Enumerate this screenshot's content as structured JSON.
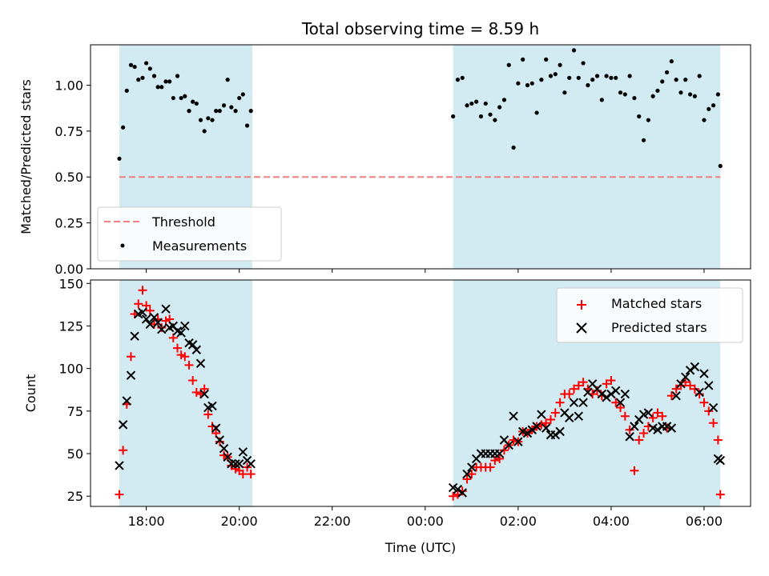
{
  "title": "Total observing time = 8.59 h",
  "colors": {
    "shade": "#add8e6",
    "threshold": "#f08080",
    "measurement": "#000000",
    "matched": "#ff0000",
    "predicted": "#000000"
  },
  "shaded_intervals_hours": [
    [
      17.42,
      20.28
    ],
    [
      24.6,
      30.35
    ]
  ],
  "chart_data": [
    {
      "type": "scatter",
      "ylabel": "Matched/Predicted stars",
      "xlabel": "",
      "ylim": [
        0,
        1.22
      ],
      "xlim": [
        16.8,
        31.0
      ],
      "yticks": [
        0.0,
        0.25,
        0.5,
        0.75,
        1.0
      ],
      "ytick_labels": [
        "0.00",
        "0.25",
        "0.50",
        "0.75",
        "1.00"
      ],
      "legend_position": "lower-left",
      "threshold": {
        "name": "Threshold",
        "y": 0.5,
        "x_range": [
          17.42,
          30.35
        ]
      },
      "series": [
        {
          "name": "Measurements",
          "x": [
            17.42,
            17.5,
            17.58,
            17.67,
            17.75,
            17.83,
            17.92,
            18.0,
            18.08,
            18.17,
            18.25,
            18.33,
            18.42,
            18.5,
            18.58,
            18.67,
            18.75,
            18.83,
            18.92,
            19.0,
            19.08,
            19.17,
            19.25,
            19.33,
            19.42,
            19.5,
            19.58,
            19.67,
            19.75,
            19.83,
            19.92,
            20.0,
            20.08,
            20.17,
            20.25,
            24.6,
            24.7,
            24.8,
            24.9,
            25.0,
            25.1,
            25.2,
            25.3,
            25.4,
            25.5,
            25.6,
            25.7,
            25.8,
            25.9,
            26.0,
            26.1,
            26.2,
            26.3,
            26.4,
            26.5,
            26.6,
            26.7,
            26.8,
            26.9,
            27.0,
            27.1,
            27.2,
            27.3,
            27.4,
            27.5,
            27.6,
            27.7,
            27.8,
            27.9,
            28.0,
            28.1,
            28.2,
            28.3,
            28.4,
            28.5,
            28.6,
            28.7,
            28.8,
            28.9,
            29.0,
            29.1,
            29.2,
            29.3,
            29.4,
            29.5,
            29.6,
            29.7,
            29.8,
            29.9,
            30.0,
            30.1,
            30.2,
            30.3,
            30.35
          ],
          "y": [
            0.6,
            0.77,
            0.97,
            1.11,
            1.1,
            1.03,
            1.04,
            1.12,
            1.09,
            1.05,
            0.99,
            0.99,
            1.02,
            1.02,
            0.93,
            1.05,
            0.93,
            0.94,
            0.86,
            0.91,
            0.9,
            0.81,
            0.75,
            0.82,
            0.81,
            0.86,
            0.86,
            0.89,
            1.03,
            0.88,
            0.86,
            0.93,
            0.95,
            0.78,
            0.86,
            0.83,
            1.03,
            1.04,
            0.89,
            0.9,
            0.91,
            0.83,
            0.9,
            0.84,
            0.81,
            0.88,
            0.92,
            1.11,
            0.66,
            1.01,
            1.14,
            1.0,
            1.01,
            0.85,
            1.03,
            1.14,
            1.05,
            1.06,
            1.11,
            0.96,
            1.04,
            1.19,
            1.04,
            1.12,
            1.0,
            1.03,
            1.05,
            0.92,
            1.05,
            1.04,
            1.04,
            0.96,
            0.95,
            1.05,
            0.93,
            0.83,
            0.7,
            0.81,
            0.94,
            0.97,
            1.02,
            1.07,
            1.13,
            1.03,
            0.96,
            1.03,
            0.95,
            0.94,
            1.05,
            0.81,
            0.87,
            0.89,
            0.95,
            0.56
          ]
        }
      ]
    },
    {
      "type": "scatter",
      "title": "",
      "xlabel": "Time (UTC)",
      "ylabel": "Count",
      "ylim": [
        19,
        152
      ],
      "xlim": [
        16.8,
        31.0
      ],
      "yticks": [
        25,
        50,
        75,
        100,
        125,
        150
      ],
      "xticks": [
        18,
        20,
        22,
        24,
        26,
        28,
        30
      ],
      "xtick_labels": [
        "18:00",
        "20:00",
        "22:00",
        "00:00",
        "02:00",
        "04:00",
        "06:00"
      ],
      "legend_position": "upper-right",
      "series": [
        {
          "name": "Matched stars",
          "x": [
            17.42,
            17.5,
            17.58,
            17.67,
            17.75,
            17.83,
            17.92,
            18.0,
            18.08,
            18.17,
            18.25,
            18.33,
            18.42,
            18.5,
            18.58,
            18.67,
            18.75,
            18.83,
            18.92,
            19.0,
            19.08,
            19.17,
            19.25,
            19.33,
            19.42,
            19.5,
            19.58,
            19.67,
            19.75,
            19.83,
            19.92,
            20.0,
            20.08,
            20.17,
            20.25,
            24.6,
            24.7,
            24.8,
            24.9,
            25.0,
            25.1,
            25.2,
            25.3,
            25.4,
            25.5,
            25.6,
            25.7,
            25.8,
            25.9,
            26.0,
            26.1,
            26.2,
            26.3,
            26.4,
            26.5,
            26.6,
            26.7,
            26.8,
            26.9,
            27.0,
            27.1,
            27.2,
            27.3,
            27.4,
            27.5,
            27.6,
            27.7,
            27.8,
            27.9,
            28.0,
            28.1,
            28.2,
            28.3,
            28.4,
            28.5,
            28.6,
            28.7,
            28.8,
            28.9,
            29.0,
            29.1,
            29.2,
            29.3,
            29.4,
            29.5,
            29.6,
            29.7,
            29.8,
            29.9,
            30.0,
            30.1,
            30.2,
            30.3,
            30.35
          ],
          "y": [
            26,
            52,
            79,
            107,
            132,
            138,
            146,
            137,
            134,
            126,
            129,
            124,
            128,
            129,
            118,
            112,
            108,
            107,
            102,
            93,
            86,
            85,
            88,
            73,
            66,
            62,
            57,
            49,
            48,
            43,
            41,
            40,
            38,
            42,
            38,
            25,
            26,
            28,
            35,
            38,
            42,
            42,
            42,
            42,
            46,
            47,
            52,
            55,
            58,
            57,
            63,
            62,
            64,
            66,
            67,
            68,
            70,
            74,
            80,
            85,
            85,
            88,
            90,
            92,
            88,
            85,
            87,
            84,
            91,
            93,
            80,
            77,
            72,
            64,
            40,
            58,
            62,
            66,
            71,
            74,
            72,
            65,
            84,
            88,
            90,
            92,
            90,
            88,
            85,
            80,
            75,
            68,
            58,
            26
          ]
        },
        {
          "name": "Predicted stars",
          "x": [
            17.42,
            17.5,
            17.58,
            17.67,
            17.75,
            17.83,
            17.92,
            18.0,
            18.08,
            18.17,
            18.25,
            18.33,
            18.42,
            18.5,
            18.58,
            18.67,
            18.75,
            18.83,
            18.92,
            19.0,
            19.08,
            19.17,
            19.25,
            19.33,
            19.42,
            19.5,
            19.58,
            19.67,
            19.75,
            19.83,
            19.92,
            20.0,
            20.08,
            20.17,
            20.25,
            24.6,
            24.7,
            24.8,
            24.9,
            25.0,
            25.1,
            25.2,
            25.3,
            25.4,
            25.5,
            25.6,
            25.7,
            25.8,
            25.9,
            26.0,
            26.1,
            26.2,
            26.3,
            26.4,
            26.5,
            26.6,
            26.7,
            26.8,
            26.9,
            27.0,
            27.1,
            27.2,
            27.3,
            27.4,
            27.5,
            27.6,
            27.7,
            27.8,
            27.9,
            28.0,
            28.1,
            28.2,
            28.3,
            28.4,
            28.5,
            28.6,
            28.7,
            28.8,
            28.9,
            29.0,
            29.1,
            29.2,
            29.3,
            29.4,
            29.5,
            29.6,
            29.7,
            29.8,
            29.9,
            30.0,
            30.1,
            30.2,
            30.3,
            30.35
          ],
          "y": [
            43,
            67,
            81,
            96,
            119,
            132,
            133,
            129,
            126,
            130,
            127,
            123,
            135,
            124,
            125,
            122,
            121,
            125,
            115,
            114,
            111,
            103,
            85,
            77,
            78,
            65,
            58,
            53,
            48,
            44,
            44,
            44,
            51,
            46,
            44,
            30,
            29,
            27,
            38,
            42,
            47,
            50,
            50,
            50,
            50,
            50,
            58,
            55,
            72,
            57,
            63,
            62,
            64,
            66,
            73,
            65,
            61,
            61,
            63,
            74,
            71,
            80,
            72,
            80,
            86,
            91,
            88,
            85,
            83,
            85,
            87,
            80,
            85,
            60,
            66,
            70,
            73,
            74,
            65,
            64,
            66,
            66,
            65,
            84,
            91,
            95,
            99,
            101,
            86,
            97,
            90,
            77,
            47,
            46
          ]
        }
      ]
    }
  ]
}
